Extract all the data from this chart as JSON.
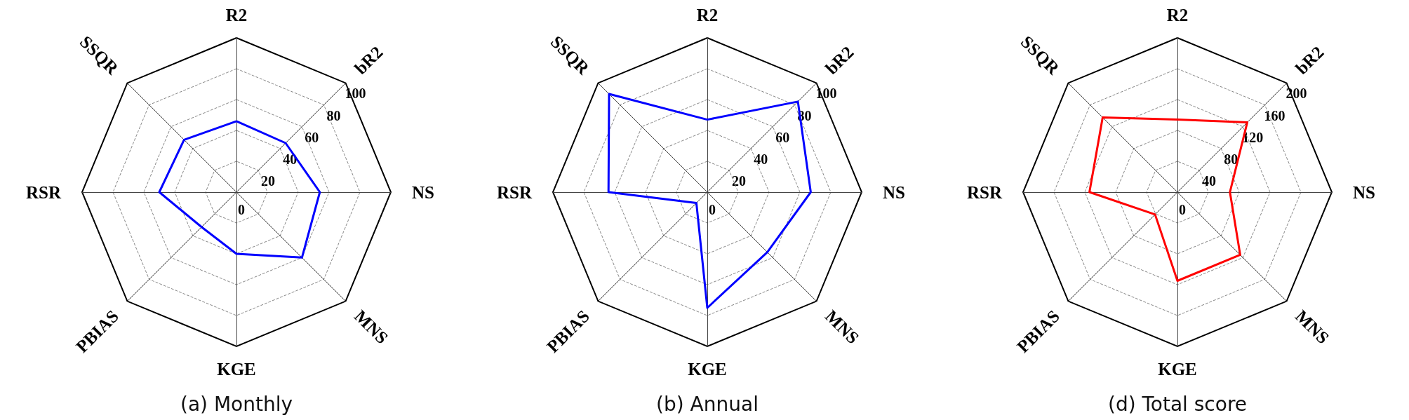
{
  "chart_data": [
    {
      "type": "radar",
      "title": "(a) Monthly",
      "categories": [
        "R2",
        "bR2",
        "NS",
        "MNS",
        "KGE",
        "PBIAS",
        "RSR",
        "SSQR"
      ],
      "series": [
        {
          "color": "#0000ff",
          "values": [
            46,
            45,
            54,
            60,
            40,
            32,
            50,
            48
          ]
        }
      ],
      "ylim": [
        0,
        100
      ],
      "yticks": [
        0,
        20,
        40,
        60,
        80,
        100
      ],
      "grid": true,
      "marker": "none"
    },
    {
      "type": "radar",
      "title": "(b) Annual",
      "categories": [
        "R2",
        "bR2",
        "NS",
        "MNS",
        "KGE",
        "PBIAS",
        "RSR",
        "SSQR"
      ],
      "series": [
        {
          "color": "#0000ff",
          "values": [
            47,
            83,
            67,
            55,
            75,
            10,
            64,
            90
          ]
        }
      ],
      "ylim": [
        0,
        100
      ],
      "yticks": [
        0,
        20,
        40,
        60,
        80,
        100
      ],
      "grid": true,
      "marker": "none"
    },
    {
      "type": "radar",
      "title": "(d) Total score",
      "categories": [
        "R2",
        "bR2",
        "NS",
        "MNS",
        "KGE",
        "PBIAS",
        "RSR",
        "SSQR"
      ],
      "series": [
        {
          "color": "#ff0000",
          "values": [
            94,
            128,
            68,
            115,
            115,
            41,
            114,
            137
          ]
        }
      ],
      "ylim": [
        0,
        200
      ],
      "yticks": [
        0,
        40,
        80,
        120,
        160,
        200
      ],
      "grid": true,
      "marker": "none"
    }
  ]
}
